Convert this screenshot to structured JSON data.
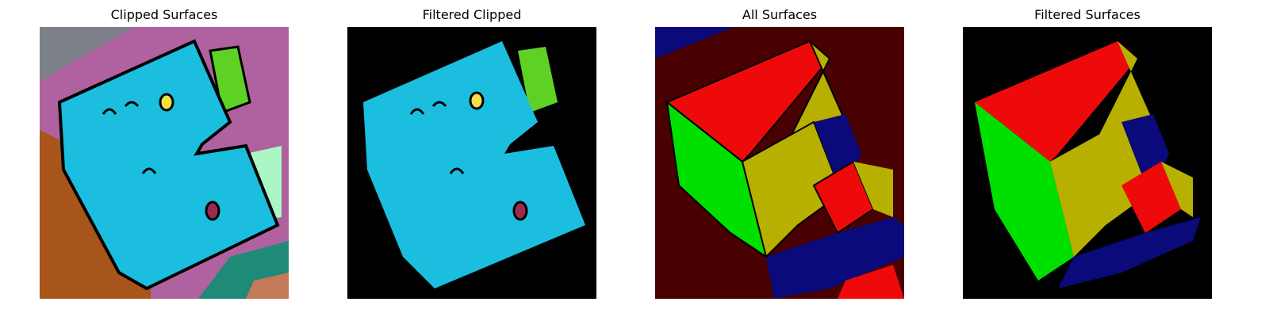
{
  "panels": [
    {
      "title": "Clipped Surfaces"
    },
    {
      "title": "Filtered Clipped"
    },
    {
      "title": "All Surfaces"
    },
    {
      "title": "Filtered Surfaces"
    }
  ],
  "colors": {
    "background": "#000000",
    "roof_cyan": "#1bbede",
    "lime": "#5fd124",
    "magenta_pink": "#b0619f",
    "orange_brown": "#a8551c",
    "red": "#ee0a0a",
    "green": "#00e000",
    "olive_yellow": "#b8b000",
    "navy": "#0a0a7a",
    "dark_red": "#480000"
  }
}
